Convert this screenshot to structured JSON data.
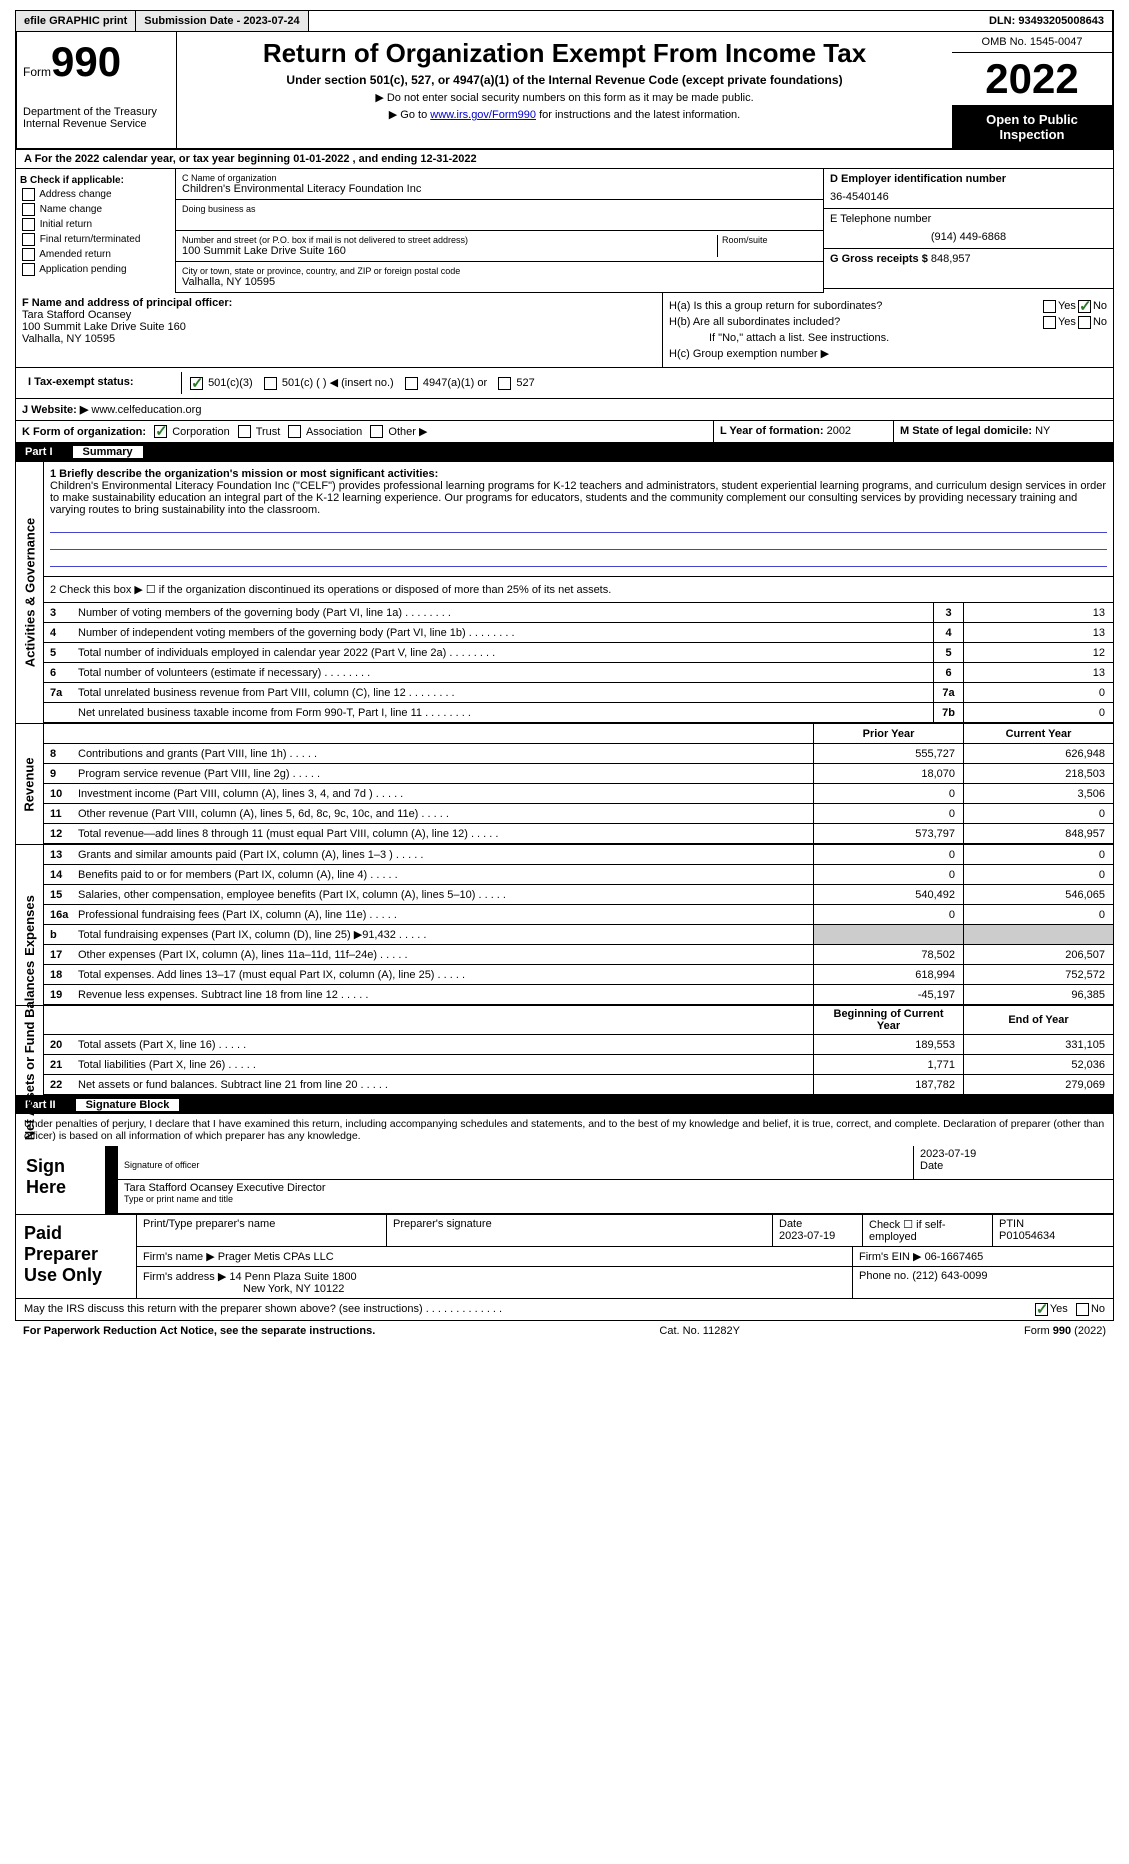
{
  "topbar": {
    "efile": "efile GRAPHIC print",
    "submission": "Submission Date - 2023-07-24",
    "dln": "DLN: 93493205008643"
  },
  "header": {
    "form_label": "Form",
    "form_number": "990",
    "dept": "Department of the Treasury Internal Revenue Service",
    "title": "Return of Organization Exempt From Income Tax",
    "subtitle": "Under section 501(c), 527, or 4947(a)(1) of the Internal Revenue Code (except private foundations)",
    "warn1": "▶ Do not enter social security numbers on this form as it may be made public.",
    "warn2_pre": "▶ Go to ",
    "warn2_link": "www.irs.gov/Form990",
    "warn2_post": " for instructions and the latest information.",
    "omb": "OMB No. 1545-0047",
    "year": "2022",
    "open": "Open to Public Inspection"
  },
  "row_a": "A For the 2022 calendar year, or tax year beginning 01-01-2022    , and ending 12-31-2022",
  "section_b": {
    "label": "B Check if applicable:",
    "opts": [
      "Address change",
      "Name change",
      "Initial return",
      "Final return/terminated",
      "Amended return",
      "Application pending"
    ]
  },
  "section_c": {
    "name_label": "C Name of organization",
    "name": "Children's Environmental Literacy Foundation Inc",
    "dba_label": "Doing business as",
    "addr_label": "Number and street (or P.O. box if mail is not delivered to street address)",
    "addr": "100 Summit Lake Drive Suite 160",
    "room_label": "Room/suite",
    "city_label": "City or town, state or province, country, and ZIP or foreign postal code",
    "city": "Valhalla, NY  10595"
  },
  "section_d": {
    "label": "D Employer identification number",
    "val": "36-4540146"
  },
  "section_e": {
    "label": "E Telephone number",
    "val": "(914) 449-6868"
  },
  "section_g": {
    "label": "G Gross receipts $",
    "val": "848,957"
  },
  "section_f": {
    "label": "F  Name and address of principal officer:",
    "name": "Tara Stafford Ocansey",
    "addr": "100 Summit Lake Drive Suite 160",
    "city": "Valhalla, NY  10595"
  },
  "section_h": {
    "ha": "H(a)  Is this a group return for subordinates?",
    "hb": "H(b)  Are all subordinates included?",
    "hb_note": "If \"No,\" attach a list. See instructions.",
    "hc": "H(c)  Group exemption number ▶",
    "yes": "Yes",
    "no": "No"
  },
  "row_i": {
    "label": "I  Tax-exempt status:",
    "opts": [
      "501(c)(3)",
      "501(c) (   ) ◀ (insert no.)",
      "4947(a)(1) or",
      "527"
    ]
  },
  "row_j": {
    "label": "J  Website: ▶",
    "val": "www.celfeducation.org"
  },
  "row_k": {
    "label": "K Form of organization:",
    "opts": [
      "Corporation",
      "Trust",
      "Association",
      "Other ▶"
    ]
  },
  "row_l": {
    "label": "L Year of formation:",
    "val": "2002"
  },
  "row_m": {
    "label": "M State of legal domicile:",
    "val": "NY"
  },
  "part1": {
    "num": "Part I",
    "title": "Summary"
  },
  "summary": {
    "q1_label": "1  Briefly describe the organization's mission or most significant activities:",
    "q1_text": "Children's Environmental Literacy Foundation Inc (\"CELF\") provides professional learning programs for K-12 teachers and administrators, student experiential learning programs, and curriculum design services in order to make sustainability education an integral part of the K-12 learning experience. Our programs for educators, students and the community complement our consulting services by providing necessary training and varying routes to bring sustainability into the classroom.",
    "q2": "2    Check this box ▶ ☐  if the organization discontinued its operations or disposed of more than 25% of its net assets.",
    "lines": [
      {
        "n": "3",
        "t": "Number of voting members of the governing body (Part VI, line 1a)",
        "b": "3",
        "v": "13"
      },
      {
        "n": "4",
        "t": "Number of independent voting members of the governing body (Part VI, line 1b)",
        "b": "4",
        "v": "13"
      },
      {
        "n": "5",
        "t": "Total number of individuals employed in calendar year 2022 (Part V, line 2a)",
        "b": "5",
        "v": "12"
      },
      {
        "n": "6",
        "t": "Total number of volunteers (estimate if necessary)",
        "b": "6",
        "v": "13"
      },
      {
        "n": "7a",
        "t": "Total unrelated business revenue from Part VIII, column (C), line 12",
        "b": "7a",
        "v": "0"
      },
      {
        "n": "",
        "t": "Net unrelated business taxable income from Form 990-T, Part I, line 11",
        "b": "7b",
        "v": "0"
      }
    ],
    "col_prior": "Prior Year",
    "col_curr": "Current Year",
    "revenue": [
      {
        "n": "8",
        "t": "Contributions and grants (Part VIII, line 1h)",
        "p": "555,727",
        "c": "626,948"
      },
      {
        "n": "9",
        "t": "Program service revenue (Part VIII, line 2g)",
        "p": "18,070",
        "c": "218,503"
      },
      {
        "n": "10",
        "t": "Investment income (Part VIII, column (A), lines 3, 4, and 7d )",
        "p": "0",
        "c": "3,506"
      },
      {
        "n": "11",
        "t": "Other revenue (Part VIII, column (A), lines 5, 6d, 8c, 9c, 10c, and 11e)",
        "p": "0",
        "c": "0"
      },
      {
        "n": "12",
        "t": "Total revenue—add lines 8 through 11 (must equal Part VIII, column (A), line 12)",
        "p": "573,797",
        "c": "848,957"
      }
    ],
    "expenses": [
      {
        "n": "13",
        "t": "Grants and similar amounts paid (Part IX, column (A), lines 1–3 )",
        "p": "0",
        "c": "0"
      },
      {
        "n": "14",
        "t": "Benefits paid to or for members (Part IX, column (A), line 4)",
        "p": "0",
        "c": "0"
      },
      {
        "n": "15",
        "t": "Salaries, other compensation, employee benefits (Part IX, column (A), lines 5–10)",
        "p": "540,492",
        "c": "546,065"
      },
      {
        "n": "16a",
        "t": "Professional fundraising fees (Part IX, column (A), line 11e)",
        "p": "0",
        "c": "0"
      },
      {
        "n": "b",
        "t": "Total fundraising expenses (Part IX, column (D), line 25) ▶91,432",
        "p": "",
        "c": "",
        "shaded": true
      },
      {
        "n": "17",
        "t": "Other expenses (Part IX, column (A), lines 11a–11d, 11f–24e)",
        "p": "78,502",
        "c": "206,507"
      },
      {
        "n": "18",
        "t": "Total expenses. Add lines 13–17 (must equal Part IX, column (A), line 25)",
        "p": "618,994",
        "c": "752,572"
      },
      {
        "n": "19",
        "t": "Revenue less expenses. Subtract line 18 from line 12",
        "p": "-45,197",
        "c": "96,385"
      }
    ],
    "col_beg": "Beginning of Current Year",
    "col_end": "End of Year",
    "netassets": [
      {
        "n": "20",
        "t": "Total assets (Part X, line 16)",
        "p": "189,553",
        "c": "331,105"
      },
      {
        "n": "21",
        "t": "Total liabilities (Part X, line 26)",
        "p": "1,771",
        "c": "52,036"
      },
      {
        "n": "22",
        "t": "Net assets or fund balances. Subtract line 21 from line 20",
        "p": "187,782",
        "c": "279,069"
      }
    ],
    "side_act": "Activities & Governance",
    "side_rev": "Revenue",
    "side_exp": "Expenses",
    "side_net": "Net Assets or Fund Balances"
  },
  "part2": {
    "num": "Part II",
    "title": "Signature Block"
  },
  "sig": {
    "decl": "Under penalties of perjury, I declare that I have examined this return, including accompanying schedules and statements, and to the best of my knowledge and belief, it is true, correct, and complete. Declaration of preparer (other than officer) is based on all information of which preparer has any knowledge.",
    "sign_here": "Sign Here",
    "sig_officer": "Signature of officer",
    "date": "Date",
    "date_val": "2023-07-19",
    "name": "Tara Stafford Ocansey  Executive Director",
    "name_label": "Type or print name and title"
  },
  "prep": {
    "label": "Paid Preparer Use Only",
    "h1": "Print/Type preparer's name",
    "h2": "Preparer's signature",
    "h3": "Date",
    "h3v": "2023-07-19",
    "h4": "Check ☐ if self-employed",
    "h5": "PTIN",
    "h5v": "P01054634",
    "firm_label": "Firm's name    ▶",
    "firm": "Prager Metis CPAs LLC",
    "ein_label": "Firm's EIN ▶",
    "ein": "06-1667465",
    "addr_label": "Firm's address ▶",
    "addr": "14 Penn Plaza Suite 1800",
    "addr2": "New York, NY  10122",
    "phone_label": "Phone no.",
    "phone": "(212) 643-0099"
  },
  "discuss": {
    "q": "May the IRS discuss this return with the preparer shown above? (see instructions)",
    "yes": "Yes",
    "no": "No"
  },
  "footer": {
    "left": "For Paperwork Reduction Act Notice, see the separate instructions.",
    "mid": "Cat. No. 11282Y",
    "right": "Form 990 (2022)"
  }
}
